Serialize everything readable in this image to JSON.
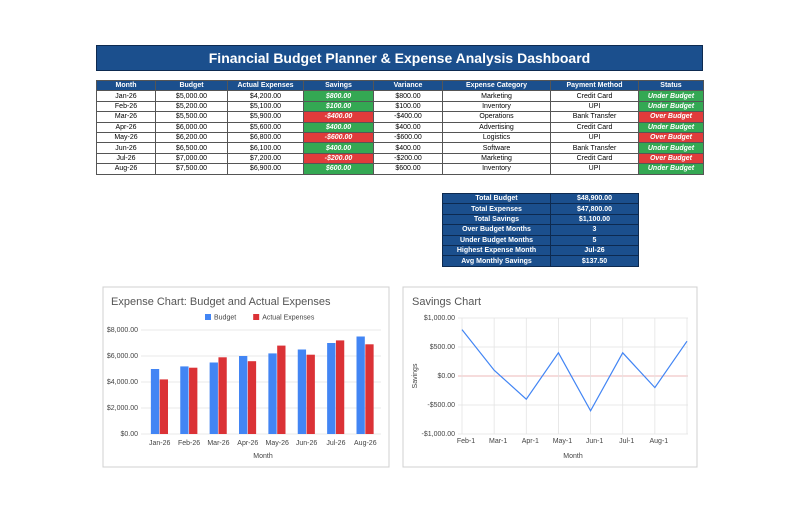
{
  "header": {
    "title": "Financial Budget Planner & Expense Analysis Dashboard"
  },
  "table": {
    "columns": [
      "Month",
      "Budget",
      "Actual Expenses",
      "Savings",
      "Variance",
      "Expense Category",
      "Payment Method",
      "Status"
    ],
    "rows": [
      [
        "Jan-26",
        "$5,000.00",
        "$4,200.00",
        "$800.00",
        "$800.00",
        "Marketing",
        "Credit Card",
        "Under Budget"
      ],
      [
        "Feb-26",
        "$5,200.00",
        "$5,100.00",
        "$100.00",
        "$100.00",
        "Inventory",
        "UPI",
        "Under Budget"
      ],
      [
        "Mar-26",
        "$5,500.00",
        "$5,900.00",
        "-$400.00",
        "-$400.00",
        "Operations",
        "Bank Transfer",
        "Over Budget"
      ],
      [
        "Apr-26",
        "$6,000.00",
        "$5,600.00",
        "$400.00",
        "$400.00",
        "Advertising",
        "Credit Card",
        "Under Budget"
      ],
      [
        "May-26",
        "$6,200.00",
        "$6,800.00",
        "-$600.00",
        "-$600.00",
        "Logistics",
        "UPI",
        "Over Budget"
      ],
      [
        "Jun-26",
        "$6,500.00",
        "$6,100.00",
        "$400.00",
        "$400.00",
        "Software",
        "Bank Transfer",
        "Under Budget"
      ],
      [
        "Jul-26",
        "$7,000.00",
        "$7,200.00",
        "-$200.00",
        "-$200.00",
        "Marketing",
        "Credit Card",
        "Over Budget"
      ],
      [
        "Aug-26",
        "$7,500.00",
        "$6,900.00",
        "$600.00",
        "$600.00",
        "Inventory",
        "UPI",
        "Under Budget"
      ]
    ],
    "status_colors": [
      "#34a853",
      "#34a853",
      "#e03b3b",
      "#34a853",
      "#e03b3b",
      "#34a853",
      "#e03b3b",
      "#34a853"
    ]
  },
  "summary": {
    "rows": [
      [
        "Total Budget",
        "$48,900.00"
      ],
      [
        "Total Expenses",
        "$47,800.00"
      ],
      [
        "Total Savings",
        "$1,100.00"
      ],
      [
        "Over Budget Months",
        "3"
      ],
      [
        "Under Budget Months",
        "5"
      ],
      [
        "Highest Expense Month",
        "Jul-26"
      ],
      [
        "Avg Monthly Savings",
        "$137.50"
      ]
    ]
  },
  "chart_data": [
    {
      "type": "bar",
      "title": "Expense Chart: Budget and Actual Expenses",
      "x_label": "Month",
      "categories": [
        "Jan-26",
        "Feb-26",
        "Mar-26",
        "Apr-26",
        "May-26",
        "Jun-26",
        "Jul-26",
        "Aug-26"
      ],
      "series": [
        {
          "name": "Budget",
          "color": "#4285f4",
          "values": [
            5000,
            5200,
            5500,
            6000,
            6200,
            6500,
            7000,
            7500
          ]
        },
        {
          "name": "Actual Expenses",
          "color": "#db3236",
          "values": [
            4200,
            5100,
            5900,
            5600,
            6800,
            6100,
            7200,
            6900
          ]
        }
      ],
      "ylim": [
        0,
        8000
      ],
      "yticks": [
        {
          "value": 0,
          "label": "$0.00"
        },
        {
          "value": 2000,
          "label": "$2,000.00"
        },
        {
          "value": 4000,
          "label": "$4,000.00"
        },
        {
          "value": 6000,
          "label": "$6,000.00"
        },
        {
          "value": 8000,
          "label": "$8,000.00"
        }
      ],
      "grid": true,
      "legend": "top"
    },
    {
      "type": "line",
      "title": "Savings Chart",
      "x_label": "Month",
      "y_label": "Savings",
      "categories": [
        "Feb-1",
        "Mar-1",
        "Apr-1",
        "May-1",
        "Jun-1",
        "Jul-1",
        "Aug-1",
        null
      ],
      "values": [
        800,
        100,
        -400,
        400,
        -600,
        400,
        -200,
        600
      ],
      "color": "#4285f4",
      "ylim": [
        -1000,
        1000
      ],
      "yticks": [
        {
          "value": -1000,
          "label": "-$1,000.00"
        },
        {
          "value": -500,
          "label": "-$500.00"
        },
        {
          "value": 0,
          "label": "$0.00"
        },
        {
          "value": 500,
          "label": "$500.00"
        },
        {
          "value": 1000,
          "label": "$1,000.00"
        }
      ],
      "grid": true
    }
  ]
}
